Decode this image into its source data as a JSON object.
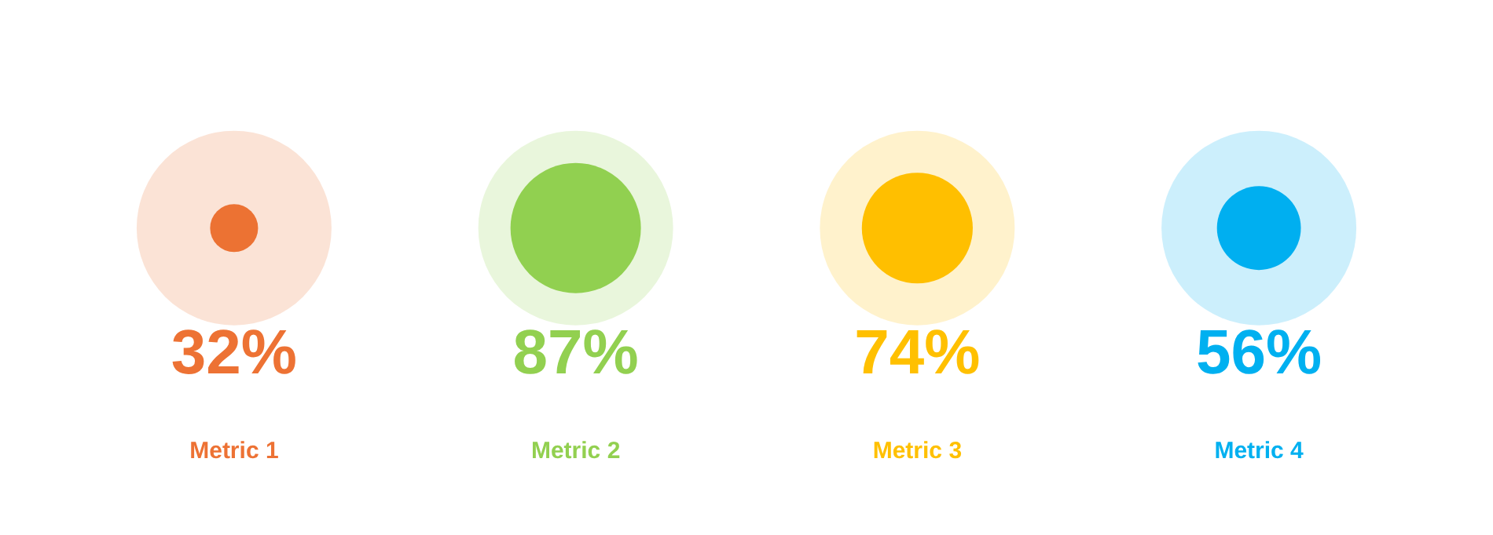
{
  "chart_data": {
    "type": "other",
    "categories": [
      "Metric 1",
      "Metric 2",
      "Metric 3",
      "Metric 4"
    ],
    "values": [
      32,
      87,
      74,
      56
    ],
    "value_labels": [
      "32%",
      "87%",
      "74%",
      "56%"
    ],
    "colors": [
      "#ed7234",
      "#92d050",
      "#ffc000",
      "#00b0f0"
    ],
    "legend": false
  }
}
